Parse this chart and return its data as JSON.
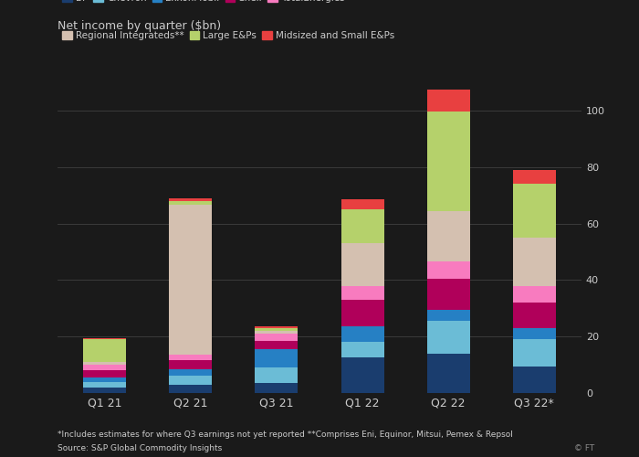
{
  "quarters": [
    "Q1 21",
    "Q2 21",
    "Q3 21",
    "Q1 22",
    "Q2 22",
    "Q3 22*"
  ],
  "series": {
    "BP": [
      2.0,
      3.0,
      3.5,
      12.5,
      14.0,
      9.5
    ],
    "Chevron": [
      2.0,
      3.0,
      5.5,
      5.5,
      11.5,
      9.5
    ],
    "ExxonMobil": [
      1.5,
      2.5,
      6.5,
      5.5,
      4.0,
      4.0
    ],
    "Shell": [
      2.5,
      3.0,
      3.0,
      9.5,
      11.0,
      9.0
    ],
    "TotalEnergies": [
      2.0,
      2.0,
      2.5,
      5.0,
      6.0,
      6.0
    ],
    "Regional Integrateds**": [
      1.0,
      53.0,
      1.0,
      15.0,
      18.0,
      17.0
    ],
    "Large E&Ps": [
      8.0,
      1.5,
      1.0,
      12.0,
      35.0,
      19.0
    ],
    "Midsized and Small E&Ps": [
      0.5,
      1.0,
      0.5,
      3.5,
      8.0,
      5.0
    ]
  },
  "colors": {
    "BP": "#1a3d6e",
    "Chevron": "#6bbcd6",
    "ExxonMobil": "#2680c4",
    "Shell": "#b0005a",
    "TotalEnergies": "#f87bbf",
    "Regional Integrateds**": "#d4c0b0",
    "Large E&Ps": "#b5d16b",
    "Midsized and Small E&Ps": "#e84040"
  },
  "title": "Net income by quarter ($bn)",
  "title_fontsize": 9,
  "ylim": [
    0,
    110
  ],
  "yticks": [
    0,
    20,
    40,
    60,
    80,
    100
  ],
  "footnote1": "*Includes estimates for where Q3 earnings not yet reported **Comprises Eni, Equinor, Mitsui, Pemex & Repsol",
  "footnote2": "Source: S&P Global Commodity Insights",
  "footnote3": "© FT",
  "bg_color": "#1a1a1a",
  "text_color": "#cccccc",
  "grid_color": "#3a3a3a",
  "bar_width": 0.5
}
